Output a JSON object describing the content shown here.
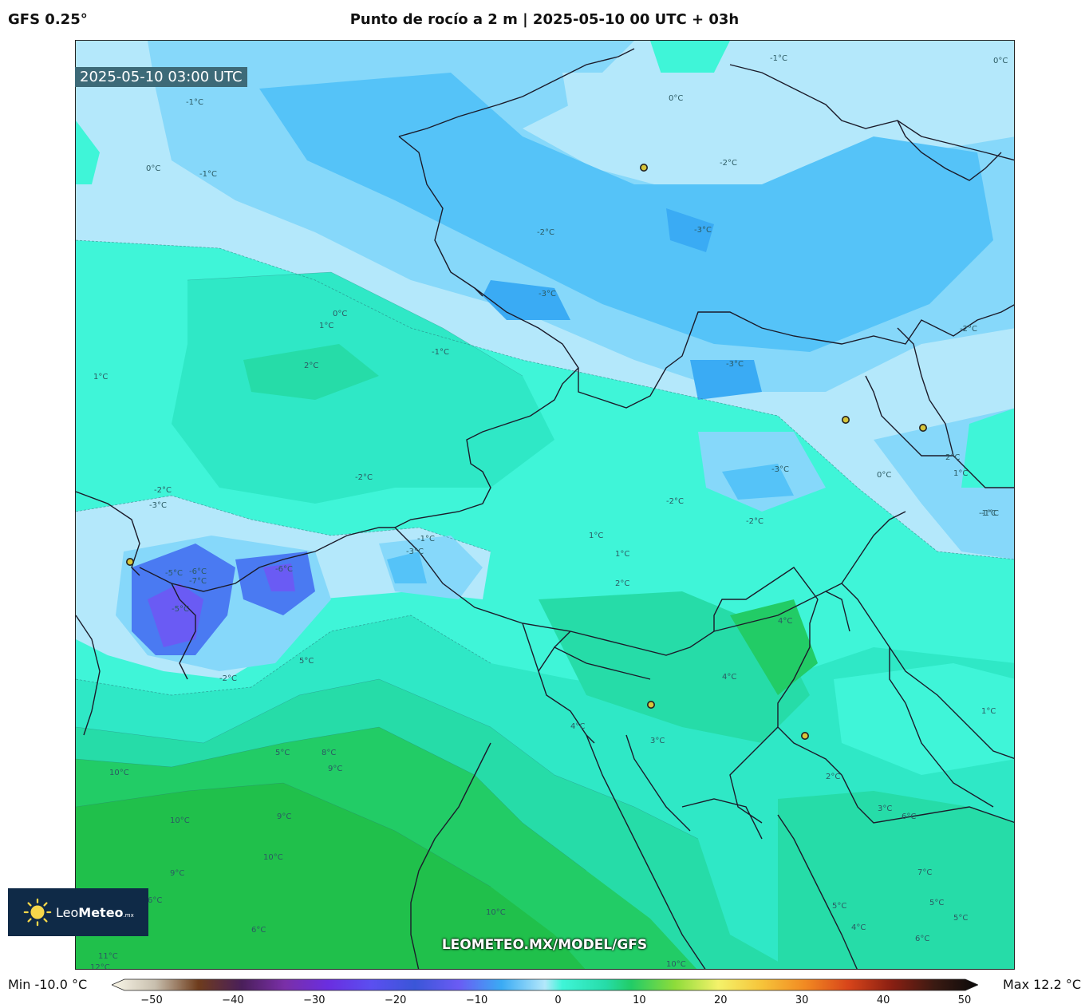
{
  "header": {
    "model": "GFS 0.25°",
    "title": "Punto de rocío a 2 m | 2025-05-10 00 UTC + 03h"
  },
  "map": {
    "valid_time": "2025-05-10 03:00 UTC",
    "watermark": "LEOMETEO.MX/MODEL/GFS",
    "contour_labels": [
      "-1°C",
      "0°C",
      "-1°C",
      "0°C",
      "-1°C",
      "0°C",
      "-2°C",
      "-3°C",
      "-2°C",
      "-3°C",
      "0°C",
      "1°C",
      "-1°C",
      "2°C",
      "1°C",
      "-3°C",
      "-2°C",
      "-3°C",
      "-2°C",
      "0°C",
      "1°C",
      "-1°C",
      "2°C",
      "-2°C",
      "-1°C",
      "-2°C",
      "-3°C",
      "1°C",
      "1°C",
      "2°C",
      "-2°C",
      "-3°C",
      "-5°C",
      "-6°C",
      "-7°C",
      "-5°C",
      "-6°C",
      "4°C",
      "5°C",
      "-2°C",
      "4°C",
      "4°C",
      "5°C",
      "8°C",
      "9°C",
      "10°C",
      "9°C",
      "10°C",
      "10°C",
      "9°C",
      "6°C",
      "3°C",
      "2°C",
      "3°C",
      "6°C",
      "7°C",
      "5°C",
      "5°C",
      "5°C",
      "4°C",
      "6°C",
      "10°C",
      "1°C",
      "-1°C",
      "11°C",
      "12°C",
      "10°C",
      "6°C"
    ],
    "colors": {
      "light_blue": "#b4e8fb",
      "sky_blue": "#86d8fa",
      "blue": "#55c3f8",
      "deep_blue": "#3aabf4",
      "cyan_light": "#8ef0e6",
      "turquoise": "#3ff5d8",
      "teal": "#2fe8c6",
      "sea_green": "#26dca8",
      "green": "#22cc66",
      "dark_green": "#20c04b",
      "violet": "#6a5bf4",
      "indigo": "#4a7af2"
    }
  },
  "logo": {
    "brand_light": "Leo",
    "brand_bold": "Meteo",
    "brand_suffix": ".mx"
  },
  "colorbar": {
    "min_label": "Min -10.0 °C",
    "max_label": "Max 12.2 °C",
    "ticks": [
      "−50",
      "−40",
      "−30",
      "−20",
      "−10",
      "0",
      "10",
      "20",
      "30",
      "40",
      "50"
    ],
    "range": [
      -50,
      50
    ],
    "stops": [
      {
        "v": -50,
        "c": "#fbf8ea"
      },
      {
        "v": -45,
        "c": "#c8bfae"
      },
      {
        "v": -40,
        "c": "#6e3c1c"
      },
      {
        "v": -35,
        "c": "#4a1f5a"
      },
      {
        "v": -30,
        "c": "#7a2fa8"
      },
      {
        "v": -25,
        "c": "#6a2ee0"
      },
      {
        "v": -20,
        "c": "#5b4ff0"
      },
      {
        "v": -15,
        "c": "#3a56d8"
      },
      {
        "v": -10,
        "c": "#6a5bf4"
      },
      {
        "v": -5,
        "c": "#3aabf4"
      },
      {
        "v": 0,
        "c": "#b4e8fb"
      },
      {
        "v": 2,
        "c": "#3ff5d8"
      },
      {
        "v": 7,
        "c": "#26dca8"
      },
      {
        "v": 10,
        "c": "#22cc66"
      },
      {
        "v": 15,
        "c": "#8edc3a"
      },
      {
        "v": 20,
        "c": "#f4f26a"
      },
      {
        "v": 25,
        "c": "#f6c43a"
      },
      {
        "v": 30,
        "c": "#f28a22"
      },
      {
        "v": 35,
        "c": "#d8451a"
      },
      {
        "v": 40,
        "c": "#8a1f12"
      },
      {
        "v": 45,
        "c": "#3a1a12"
      },
      {
        "v": 50,
        "c": "#0a0a0a"
      }
    ]
  }
}
